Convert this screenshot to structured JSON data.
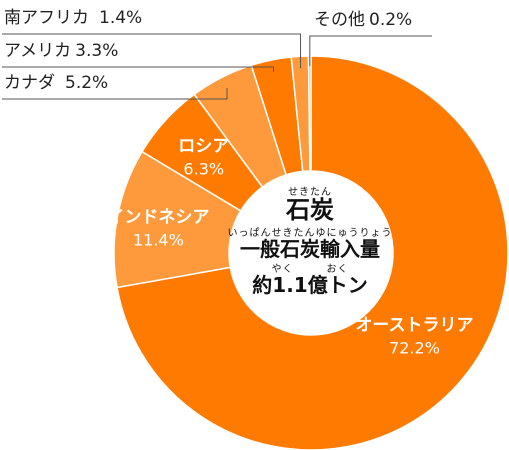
{
  "chart_data": {
    "type": "pie",
    "style": "donut",
    "categories": [
      "オーストラリア",
      "インドネシア",
      "ロシア",
      "カナダ",
      "アメリカ",
      "南アフリカ",
      "その他"
    ],
    "values": [
      72.2,
      11.4,
      6.3,
      5.2,
      3.3,
      1.4,
      0.2
    ],
    "value_labels": [
      "72.2%",
      "11.4%",
      "6.3%",
      "5.2%",
      "3.3%",
      "1.4%",
      "0.2%"
    ],
    "colors": [
      "#ff7a00",
      "#ff9a3c",
      "#ff7a00",
      "#ff9a3c",
      "#ff7a00",
      "#ff9a3c",
      "#ff9a3c"
    ],
    "center": {
      "ruby_title": "せきたん",
      "title": "石炭",
      "ruby_subtitle": "いっぱんせきたんゆにゅうりょう",
      "subtitle": "一般石炭輸入量",
      "ruby_total": "やく　　　おく",
      "total": "約1.1億トン"
    }
  }
}
